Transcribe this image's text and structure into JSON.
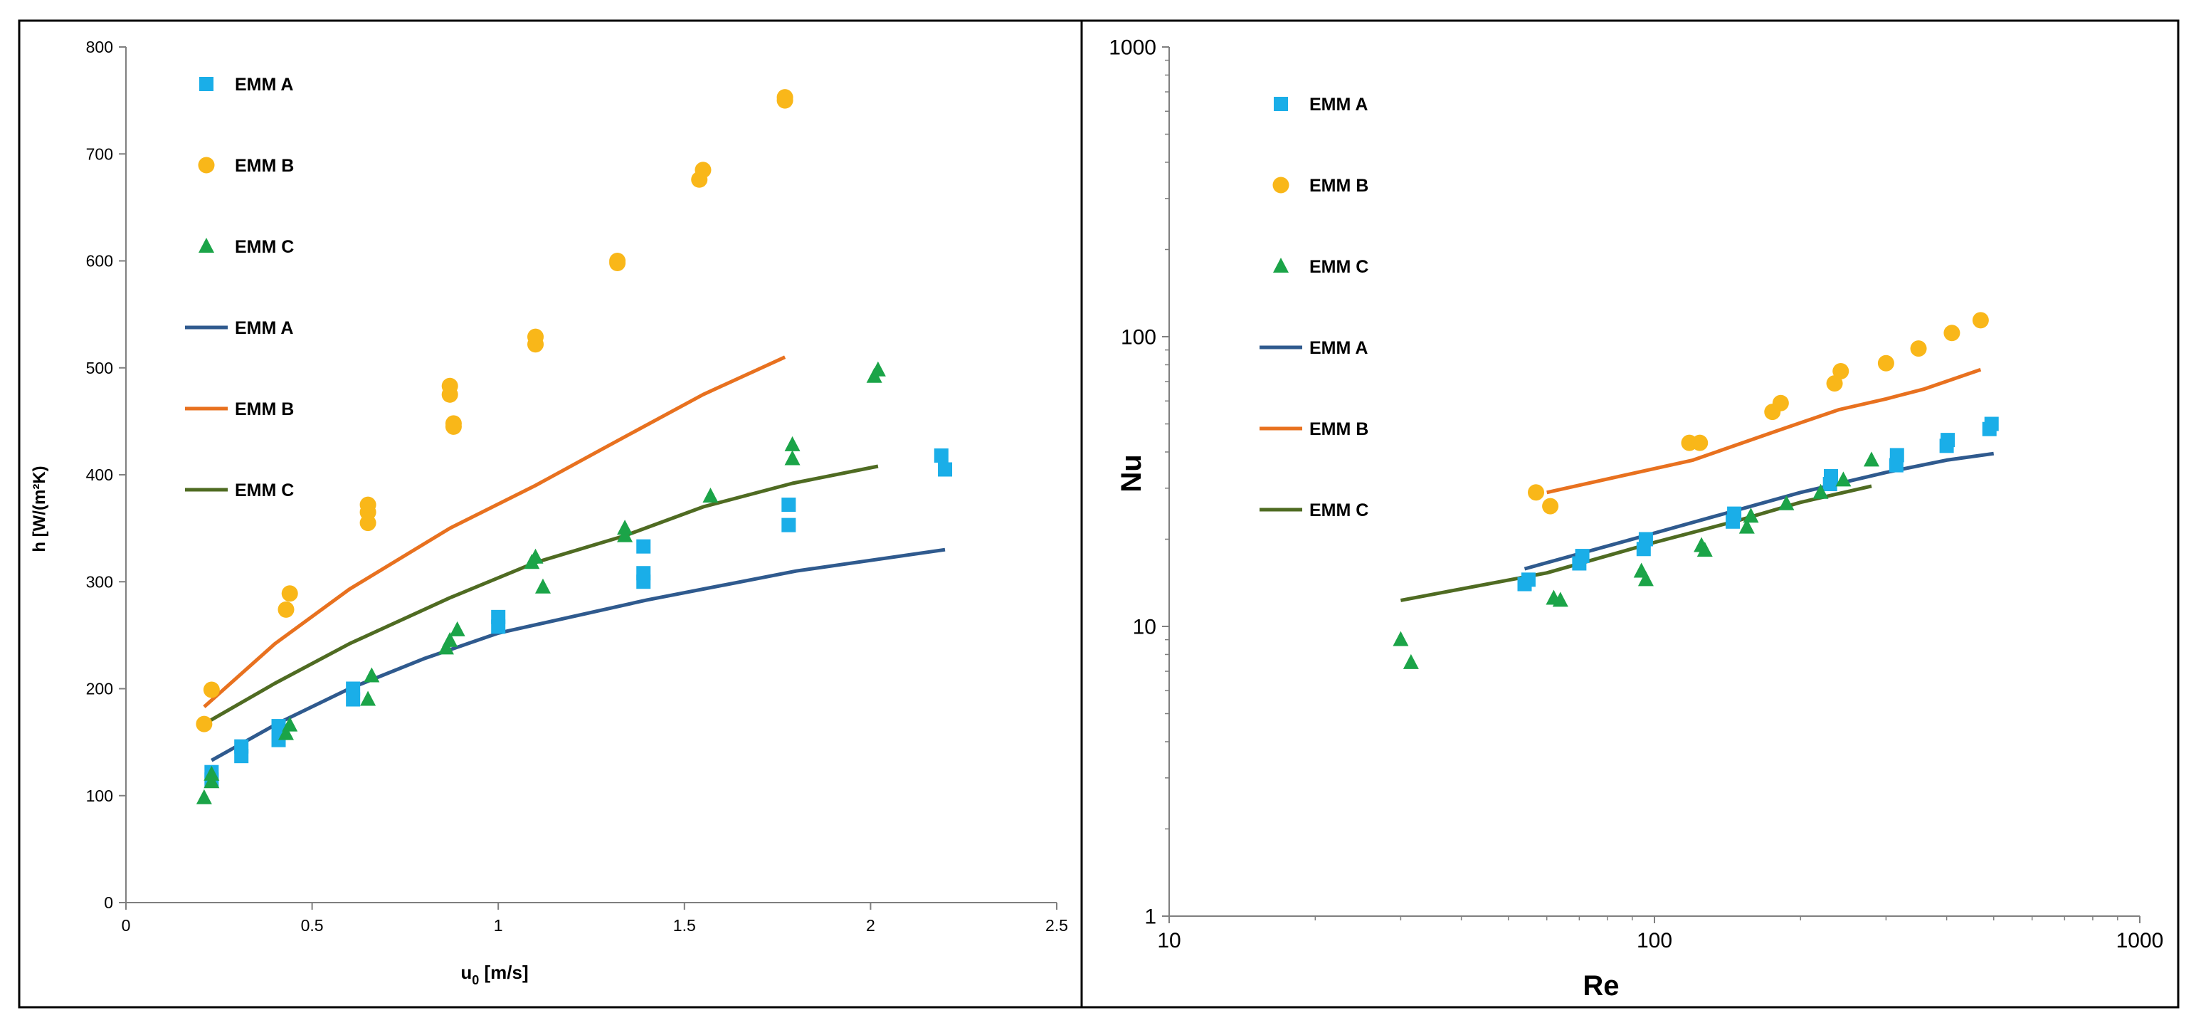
{
  "colors": {
    "a_marker": "#1aaee8",
    "b_marker": "#f9b719",
    "c_marker": "#1ba448",
    "a_line": "#2f5a8e",
    "b_line": "#e8711f",
    "c_line": "#4f6b22",
    "axis": "#7f7f7f",
    "frame": "#000000"
  },
  "chart_data": [
    {
      "type": "scatter",
      "title": "",
      "xlabel": "u",
      "xlabel_sub": "0",
      "xlabel_unit": " [m/s]",
      "ylabel": "h [W/(m²K)",
      "xlim": [
        0,
        2.5
      ],
      "ylim": [
        0,
        800
      ],
      "xticks": [
        0,
        0.5,
        1,
        1.5,
        2,
        2.5
      ],
      "xtick_labels": [
        "0",
        "0.5",
        "1",
        "1.5",
        "2",
        "2.5"
      ],
      "yticks": [
        0,
        100,
        200,
        300,
        400,
        500,
        600,
        700,
        800
      ],
      "ytick_labels": [
        "0",
        "100",
        "200",
        "300",
        "400",
        "500",
        "600",
        "700",
        "800"
      ],
      "grid": false,
      "legend_position": "top-left",
      "series": [
        {
          "name": "EMM A",
          "kind": "marker",
          "marker": "square",
          "color_key": "a_marker",
          "points": [
            [
              0.23,
              115
            ],
            [
              0.23,
              122
            ],
            [
              0.31,
              137
            ],
            [
              0.31,
              146
            ],
            [
              0.41,
              152
            ],
            [
              0.41,
              165
            ],
            [
              0.61,
              190
            ],
            [
              0.61,
              200
            ],
            [
              1.0,
              258
            ],
            [
              1.0,
              267
            ],
            [
              1.39,
              300
            ],
            [
              1.39,
              308
            ],
            [
              1.39,
              333
            ],
            [
              1.78,
              353
            ],
            [
              1.78,
              372
            ],
            [
              2.19,
              418
            ],
            [
              2.2,
              405
            ]
          ]
        },
        {
          "name": "EMM B",
          "kind": "marker",
          "marker": "circle",
          "color_key": "b_marker",
          "points": [
            [
              0.21,
              167
            ],
            [
              0.23,
              199
            ],
            [
              0.43,
              274
            ],
            [
              0.44,
              289
            ],
            [
              0.65,
              355
            ],
            [
              0.65,
              365
            ],
            [
              0.65,
              372
            ],
            [
              0.87,
              475
            ],
            [
              0.87,
              483
            ],
            [
              0.88,
              445
            ],
            [
              0.88,
              448
            ],
            [
              1.1,
              522
            ],
            [
              1.1,
              529
            ],
            [
              1.32,
              598
            ],
            [
              1.32,
              600
            ],
            [
              1.54,
              676
            ],
            [
              1.55,
              685
            ],
            [
              1.77,
              750
            ],
            [
              1.77,
              753
            ]
          ]
        },
        {
          "name": "EMM C",
          "kind": "marker",
          "marker": "triangle",
          "color_key": "c_marker",
          "points": [
            [
              0.21,
              98
            ],
            [
              0.23,
              120
            ],
            [
              0.23,
              113
            ],
            [
              0.43,
              158
            ],
            [
              0.44,
              166
            ],
            [
              0.65,
              190
            ],
            [
              0.66,
              212
            ],
            [
              0.86,
              238
            ],
            [
              0.87,
              245
            ],
            [
              0.89,
              255
            ],
            [
              1.09,
              318
            ],
            [
              1.1,
              323
            ],
            [
              1.12,
              295
            ],
            [
              1.34,
              343
            ],
            [
              1.34,
              350
            ],
            [
              1.57,
              380
            ],
            [
              1.79,
              415
            ],
            [
              1.79,
              428
            ],
            [
              2.01,
              492
            ],
            [
              2.02,
              498
            ]
          ]
        },
        {
          "name": "EMM A",
          "kind": "line",
          "color_key": "a_line",
          "points": [
            [
              0.23,
              133
            ],
            [
              0.41,
              168
            ],
            [
              0.6,
              200
            ],
            [
              0.8,
              228
            ],
            [
              1.0,
              252
            ],
            [
              1.4,
              283
            ],
            [
              1.8,
              310
            ],
            [
              2.2,
              330
            ]
          ]
        },
        {
          "name": "EMM B",
          "kind": "line",
          "color_key": "b_line",
          "points": [
            [
              0.21,
              183
            ],
            [
              0.4,
              242
            ],
            [
              0.6,
              293
            ],
            [
              0.87,
              350
            ],
            [
              1.1,
              390
            ],
            [
              1.3,
              428
            ],
            [
              1.55,
              475
            ],
            [
              1.77,
              510
            ]
          ]
        },
        {
          "name": "EMM C",
          "kind": "line",
          "color_key": "c_line",
          "points": [
            [
              0.21,
              167
            ],
            [
              0.4,
              205
            ],
            [
              0.6,
              242
            ],
            [
              0.87,
              285
            ],
            [
              1.1,
              318
            ],
            [
              1.34,
              343
            ],
            [
              1.55,
              370
            ],
            [
              1.79,
              392
            ],
            [
              2.02,
              408
            ]
          ]
        }
      ]
    },
    {
      "type": "scatter",
      "scale": "log-log",
      "title": "",
      "xlabel": "Re",
      "ylabel": "Nu",
      "xlim": [
        10,
        1000
      ],
      "ylim": [
        1,
        1000
      ],
      "xticks": [
        10,
        100,
        1000
      ],
      "xtick_labels": [
        "10",
        "100",
        "1000"
      ],
      "yticks": [
        1,
        10,
        100,
        1000
      ],
      "ytick_labels": [
        "1",
        "10",
        "100",
        "1000"
      ],
      "grid": false,
      "legend_position": "top-left",
      "series": [
        {
          "name": "EMM A",
          "kind": "marker",
          "marker": "square",
          "color_key": "a_marker",
          "points": [
            [
              54,
              14
            ],
            [
              55,
              14.5
            ],
            [
              70,
              16.5
            ],
            [
              71,
              17.5
            ],
            [
              95,
              18.5
            ],
            [
              96,
              20
            ],
            [
              145,
              23
            ],
            [
              146,
              24.5
            ],
            [
              230,
              31
            ],
            [
              231,
              33
            ],
            [
              315,
              36
            ],
            [
              316,
              39
            ],
            [
              400,
              42
            ],
            [
              402,
              44
            ],
            [
              490,
              48
            ],
            [
              495,
              50
            ]
          ]
        },
        {
          "name": "EMM B",
          "kind": "marker",
          "marker": "circle",
          "color_key": "b_marker",
          "points": [
            [
              57,
              29
            ],
            [
              61,
              26
            ],
            [
              118,
              43
            ],
            [
              124,
              43
            ],
            [
              175,
              55
            ],
            [
              182,
              59
            ],
            [
              235,
              69
            ],
            [
              242,
              76
            ],
            [
              300,
              81
            ],
            [
              350,
              91
            ],
            [
              410,
              103
            ],
            [
              470,
              114
            ]
          ]
        },
        {
          "name": "EMM C",
          "kind": "marker",
          "marker": "triangle",
          "color_key": "c_marker",
          "points": [
            [
              30,
              9
            ],
            [
              31.5,
              7.5
            ],
            [
              62,
              12.5
            ],
            [
              64,
              12.3
            ],
            [
              94,
              15.5
            ],
            [
              96,
              14.5
            ],
            [
              125,
              19
            ],
            [
              127,
              18.3
            ],
            [
              155,
              22
            ],
            [
              158,
              24
            ],
            [
              187,
              26.5
            ],
            [
              220,
              29
            ],
            [
              245,
              32
            ],
            [
              280,
              37.5
            ]
          ]
        },
        {
          "name": "EMM A",
          "kind": "line",
          "color_key": "a_line",
          "points": [
            [
              54,
              15.8
            ],
            [
              100,
              21
            ],
            [
              200,
              29
            ],
            [
              300,
              34
            ],
            [
              400,
              37.5
            ],
            [
              500,
              39.5
            ]
          ]
        },
        {
          "name": "EMM B",
          "kind": "line",
          "color_key": "b_line",
          "points": [
            [
              60,
              29
            ],
            [
              120,
              37.5
            ],
            [
              180,
              47.5
            ],
            [
              240,
              56
            ],
            [
              300,
              61
            ],
            [
              360,
              66
            ],
            [
              470,
              77
            ]
          ]
        },
        {
          "name": "EMM C",
          "kind": "line",
          "color_key": "c_line",
          "points": [
            [
              30,
              12.3
            ],
            [
              60,
              15.3
            ],
            [
              100,
              19.5
            ],
            [
              150,
              23.3
            ],
            [
              200,
              26.8
            ],
            [
              280,
              30.5
            ]
          ]
        }
      ]
    }
  ]
}
